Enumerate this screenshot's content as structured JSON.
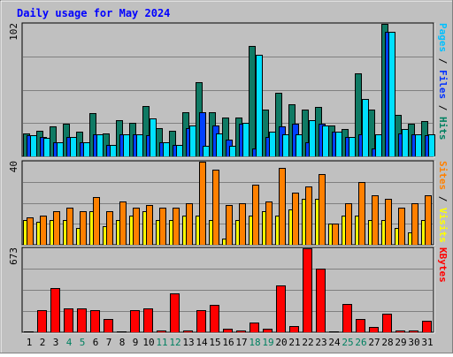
{
  "chart_data": [
    {
      "type": "bar",
      "title": "Daily usage for May 2024",
      "panel": "top",
      "ymax_label": "102",
      "right_label_parts": [
        {
          "text": "Pages",
          "color": "#00c0ff"
        },
        {
          "text": " / ",
          "color": "#000000"
        },
        {
          "text": "Files",
          "color": "#0030ff"
        },
        {
          "text": " / ",
          "color": "#000000"
        },
        {
          "text": "Hits",
          "color": "#008060"
        }
      ],
      "categories": [
        "1",
        "2",
        "3",
        "4",
        "5",
        "6",
        "7",
        "8",
        "9",
        "10",
        "11",
        "12",
        "13",
        "14",
        "15",
        "16",
        "17",
        "18",
        "19",
        "20",
        "21",
        "22",
        "23",
        "24",
        "25",
        "26",
        "27",
        "28",
        "29",
        "30",
        "31"
      ],
      "series": [
        {
          "name": "Hits",
          "color": "#0f7a64",
          "values": [
            18,
            20,
            23,
            25,
            19,
            33,
            18,
            28,
            26,
            39,
            22,
            20,
            34,
            57,
            34,
            30,
            30,
            85,
            36,
            49,
            40,
            36,
            38,
            24,
            21,
            64,
            36,
            102,
            32,
            25,
            27
          ]
        },
        {
          "name": "Files",
          "color": "#0040ff",
          "values": [
            16,
            15,
            11,
            15,
            11,
            17,
            9,
            17,
            17,
            16,
            11,
            9,
            22,
            34,
            24,
            13,
            25,
            6,
            15,
            23,
            25,
            11,
            25,
            19,
            15,
            17,
            6,
            96,
            18,
            17,
            16
          ]
        },
        {
          "name": "Pages",
          "color": "#00e0ff",
          "values": [
            16,
            14,
            11,
            15,
            11,
            17,
            9,
            17,
            17,
            29,
            11,
            9,
            24,
            8,
            18,
            8,
            26,
            78,
            19,
            17,
            17,
            28,
            24,
            19,
            15,
            44,
            17,
            96,
            21,
            17,
            17
          ]
        }
      ]
    },
    {
      "type": "bar",
      "panel": "middle",
      "ymax_label": "40",
      "right_label_parts": [
        {
          "text": "Sites",
          "color": "#ff8000"
        },
        {
          "text": " / ",
          "color": "#000000"
        },
        {
          "text": "Visits",
          "color": "#ffff00"
        }
      ],
      "categories": [
        "1",
        "2",
        "3",
        "4",
        "5",
        "6",
        "7",
        "8",
        "9",
        "10",
        "11",
        "12",
        "13",
        "14",
        "15",
        "16",
        "17",
        "18",
        "19",
        "20",
        "21",
        "22",
        "23",
        "24",
        "25",
        "26",
        "27",
        "28",
        "29",
        "30",
        "31"
      ],
      "series": [
        {
          "name": "Visits",
          "color": "#ffff00",
          "values": [
            12,
            11,
            12,
            12,
            8,
            16,
            9,
            12,
            14,
            16,
            12,
            12,
            14,
            14,
            12,
            3,
            12,
            14,
            16,
            14,
            17,
            22,
            22,
            10,
            14,
            14,
            12,
            12,
            8,
            6,
            12
          ]
        },
        {
          "name": "Sites",
          "color": "#ff8000",
          "values": [
            13,
            14,
            16,
            18,
            16,
            23,
            16,
            21,
            18,
            19,
            18,
            18,
            20,
            40,
            36,
            19,
            20,
            29,
            21,
            37,
            25,
            28,
            34,
            10,
            20,
            30,
            24,
            22,
            18,
            20,
            24
          ]
        }
      ]
    },
    {
      "type": "bar",
      "panel": "bottom",
      "ymax_label": "673",
      "right_label_parts": [
        {
          "text": "KBytes",
          "color": "#ff0000"
        }
      ],
      "categories": [
        "1",
        "2",
        "3",
        "4",
        "5",
        "6",
        "7",
        "8",
        "9",
        "10",
        "11",
        "12",
        "13",
        "14",
        "15",
        "16",
        "17",
        "18",
        "19",
        "20",
        "21",
        "22",
        "23",
        "24",
        "25",
        "26",
        "27",
        "28",
        "29",
        "30",
        "31"
      ],
      "series": [
        {
          "name": "KBytes",
          "color": "#ff0000",
          "values": [
            5,
            177,
            354,
            188,
            188,
            177,
            105,
            5,
            177,
            188,
            15,
            312,
            15,
            177,
            218,
            31,
            15,
            78,
            31,
            375,
            52,
            673,
            511,
            5,
            229,
            105,
            41,
            148,
            15,
            15,
            94
          ]
        }
      ],
      "x_label_colors": {
        "weekend": "#008060",
        "weekday": "#000000",
        "weekend_days": [
          "4",
          "5",
          "11",
          "12",
          "18",
          "19",
          "25",
          "26"
        ]
      }
    }
  ]
}
